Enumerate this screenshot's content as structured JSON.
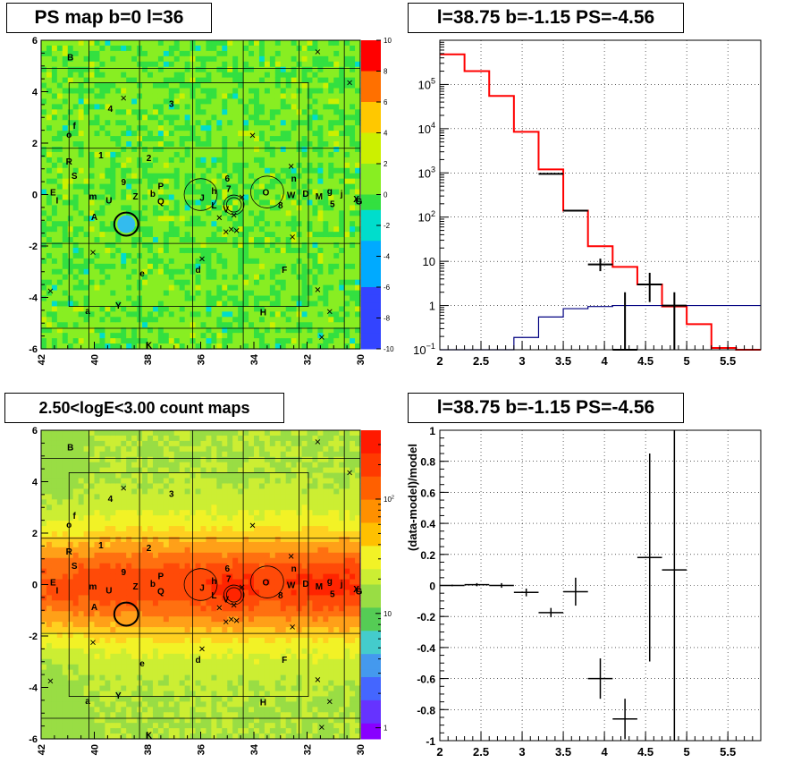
{
  "panels": {
    "tl_title": "PS map b=0 l=36",
    "tr_title": "l=38.75 b=-1.15 PS=-4.56",
    "bl_title": "2.50<logE<3.00 count maps",
    "br_title": "l=38.75 b=-1.15 PS=-4.56",
    "br_ylabel": "(data-model)/model"
  },
  "colors": {
    "model_line": "#ff0000",
    "background_line": "#000080",
    "data": "#000000"
  },
  "chart_data": [
    {
      "type": "heatmap",
      "title": "PS map b=0 l=36",
      "xlim": [
        42,
        30
      ],
      "ylim": [
        -6,
        6
      ],
      "x_ticks": [
        "42",
        "40",
        "38",
        "36",
        "34",
        "32",
        "30"
      ],
      "y_ticks": [
        "6",
        "4",
        "2",
        "0",
        "-2",
        "-4",
        "-6"
      ],
      "colorbar_range": [
        -10,
        10
      ],
      "colorbar_ticks": [
        "10",
        "8",
        "6",
        "4",
        "2",
        "0",
        "-2",
        "-4",
        "-6",
        "-8",
        "-10"
      ],
      "source_labels": [
        {
          "t": "B",
          "l": 40.9,
          "b": 5.35
        },
        {
          "t": "4",
          "l": 39.4,
          "b": 3.35
        },
        {
          "t": "3",
          "l": 37.1,
          "b": 3.55
        },
        {
          "t": "f",
          "l": 40.75,
          "b": 2.7
        },
        {
          "t": "o",
          "l": 40.95,
          "b": 2.35
        },
        {
          "t": "1",
          "l": 39.75,
          "b": 1.55
        },
        {
          "t": "2",
          "l": 37.95,
          "b": 1.45
        },
        {
          "t": "R",
          "l": 40.95,
          "b": 1.3
        },
        {
          "t": "S",
          "l": 40.75,
          "b": 0.75
        },
        {
          "t": "9",
          "l": 38.9,
          "b": 0.5
        },
        {
          "t": "6",
          "l": 35.0,
          "b": 0.65
        },
        {
          "t": "n",
          "l": 32.5,
          "b": 0.65
        },
        {
          "t": "P",
          "l": 37.5,
          "b": 0.35
        },
        {
          "t": "E",
          "l": 41.55,
          "b": 0.1
        },
        {
          "t": "I",
          "l": 41.4,
          "b": -0.2
        },
        {
          "t": "m",
          "l": 40.05,
          "b": -0.05
        },
        {
          "t": "U",
          "l": 39.45,
          "b": -0.2
        },
        {
          "t": "Z",
          "l": 38.45,
          "b": -0.05
        },
        {
          "t": "b",
          "l": 37.8,
          "b": 0.05
        },
        {
          "t": "Q",
          "l": 37.5,
          "b": -0.25
        },
        {
          "t": "J",
          "l": 35.95,
          "b": -0.1
        },
        {
          "t": "h",
          "l": 35.5,
          "b": 0.15
        },
        {
          "t": "L",
          "l": 35.5,
          "b": -0.4
        },
        {
          "t": "7",
          "l": 34.95,
          "b": 0.25
        },
        {
          "t": "V",
          "l": 35.05,
          "b": -0.55
        },
        {
          "t": "O",
          "l": 33.55,
          "b": 0.1
        },
        {
          "t": "8",
          "l": 33.0,
          "b": -0.4
        },
        {
          "t": "W",
          "l": 32.6,
          "b": 0.0
        },
        {
          "t": "D",
          "l": 32.05,
          "b": 0.05
        },
        {
          "t": "M",
          "l": 31.55,
          "b": -0.05
        },
        {
          "t": "g",
          "l": 31.15,
          "b": 0.15
        },
        {
          "t": "j",
          "l": 30.7,
          "b": 0.05
        },
        {
          "t": "5",
          "l": 31.05,
          "b": -0.35
        },
        {
          "t": "X",
          "l": 30.15,
          "b": -0.15
        },
        {
          "t": "G",
          "l": 30.05,
          "b": -0.25
        },
        {
          "t": "A",
          "l": 40.0,
          "b": -0.85
        },
        {
          "t": "e",
          "l": 38.2,
          "b": -3.05
        },
        {
          "t": "d",
          "l": 36.1,
          "b": -2.9
        },
        {
          "t": "F",
          "l": 32.85,
          "b": -2.9
        },
        {
          "t": "Y",
          "l": 39.1,
          "b": -4.3
        },
        {
          "t": "a",
          "l": 40.25,
          "b": -4.5
        },
        {
          "t": "H",
          "l": 33.65,
          "b": -4.55
        },
        {
          "t": "K",
          "l": 37.95,
          "b": -5.85
        }
      ],
      "crosses": [
        [
          31.6,
          5.55
        ],
        [
          30.4,
          4.35
        ],
        [
          38.9,
          3.75
        ],
        [
          34.05,
          2.3
        ],
        [
          32.6,
          1.1
        ],
        [
          32.55,
          -1.65
        ],
        [
          40.05,
          -2.25
        ],
        [
          35.95,
          -2.5
        ],
        [
          41.65,
          -3.75
        ],
        [
          31.6,
          -3.7
        ],
        [
          31.15,
          -4.55
        ],
        [
          31.45,
          -5.55
        ],
        [
          35.05,
          -1.45
        ],
        [
          34.85,
          -1.35
        ],
        [
          34.65,
          -1.4
        ],
        [
          34.75,
          -0.8
        ],
        [
          35.3,
          -0.9
        ],
        [
          34.45,
          -0.1
        ]
      ],
      "circles": [
        {
          "l": 38.8,
          "b": -1.15,
          "r": 0.45,
          "bold": true
        },
        {
          "l": 36.0,
          "b": 0.0,
          "r": 0.62,
          "bold": false
        },
        {
          "l": 33.5,
          "b": 0.1,
          "r": 0.62,
          "bold": false
        },
        {
          "l": 34.75,
          "b": -0.4,
          "r": 0.38,
          "bold": false
        },
        {
          "l": 34.75,
          "b": -0.4,
          "r": 0.28,
          "bold": false
        }
      ]
    },
    {
      "type": "line",
      "title": "l=38.75 b=-1.15 PS=-4.56",
      "xlim": [
        2,
        5.9
      ],
      "ylim": [
        0.1,
        1000000
      ],
      "y_scale": "log",
      "grid": true,
      "x_ticks": [
        2,
        2.5,
        3,
        3.5,
        4,
        4.5,
        5,
        5.5
      ],
      "y_ticks": [
        {
          "v": 0.1,
          "label": "10",
          "sup": "−1"
        },
        {
          "v": 1,
          "label": "1"
        },
        {
          "v": 10,
          "label": "10"
        },
        {
          "v": 100,
          "label": "10",
          "sup": "2"
        },
        {
          "v": 1000,
          "label": "10",
          "sup": "3"
        },
        {
          "v": 10000,
          "label": "10",
          "sup": "4"
        },
        {
          "v": 100000,
          "label": "10",
          "sup": "5"
        }
      ],
      "bin_edges": [
        2.0,
        2.3,
        2.6,
        2.9,
        3.2,
        3.5,
        3.8,
        4.1,
        4.4,
        4.7,
        5.0,
        5.3,
        5.6,
        5.9
      ],
      "series": [
        {
          "values": [
            480000,
            200000,
            55000,
            8500,
            1200,
            140,
            22,
            7.5,
            3.0,
            0.95,
            0.38,
            0.11,
            0.1
          ],
          "color": "#ff0000"
        },
        {
          "values": [
            0.1,
            0.1,
            0.1,
            0.19,
            0.55,
            0.85,
            0.95,
            1.0,
            1.0,
            1.0,
            1.0,
            1.0,
            1.0
          ],
          "color": "#000080"
        }
      ],
      "data_points": [
        {
          "x": 3.35,
          "y": 950,
          "xerr": 0.15,
          "ylo": 950,
          "yhi": 950
        },
        {
          "x": 3.65,
          "y": 140,
          "xerr": 0.15,
          "ylo": 140,
          "yhi": 140
        },
        {
          "x": 3.95,
          "y": 8.5,
          "xerr": 0.15,
          "ylo": 6.0,
          "yhi": 11.5
        },
        {
          "x": 4.25,
          "y": 0.1,
          "xerr": 0.15,
          "ylo": 0.1,
          "yhi": 2.0
        },
        {
          "x": 4.55,
          "y": 3.0,
          "xerr": 0.15,
          "ylo": 1.2,
          "yhi": 5.5
        },
        {
          "x": 4.85,
          "y": 1.0,
          "xerr": 0.15,
          "ylo": 0.1,
          "yhi": 2.0
        }
      ]
    },
    {
      "type": "heatmap",
      "title": "2.50<logE<3.00 count maps",
      "xlim": [
        42,
        30
      ],
      "ylim": [
        -6,
        6
      ],
      "x_ticks": [
        "42",
        "40",
        "38",
        "36",
        "34",
        "32",
        "30"
      ],
      "y_ticks": [
        "6",
        "4",
        "2",
        "0",
        "-2",
        "-4",
        "-6"
      ],
      "colorbar_scale": "log",
      "colorbar_range": [
        0.8,
        400
      ],
      "colorbar_ticks": [
        {
          "v": 1,
          "label": "1"
        },
        {
          "v": 10,
          "label": "10"
        },
        {
          "v": 100,
          "label": "10",
          "sup": "2"
        }
      ]
    },
    {
      "type": "scatter",
      "title": "l=38.75 b=-1.15 PS=-4.56",
      "xlabel": "",
      "ylabel": "(data-model)/model",
      "xlim": [
        2,
        5.9
      ],
      "ylim": [
        -1,
        1
      ],
      "grid": true,
      "x_ticks": [
        2,
        2.5,
        3,
        3.5,
        4,
        4.5,
        5,
        5.5
      ],
      "y_ticks": [
        "1",
        "0.8",
        "0.6",
        "0.4",
        "0.2",
        "0",
        "-0.2",
        "-0.4",
        "-0.6",
        "-0.8",
        "-1"
      ],
      "points": [
        {
          "x": 2.15,
          "y": 0.0,
          "xerr": 0.15,
          "yerr": 0.005
        },
        {
          "x": 2.45,
          "y": 0.005,
          "xerr": 0.15,
          "yerr": 0.01
        },
        {
          "x": 2.75,
          "y": 0.0,
          "xerr": 0.15,
          "yerr": 0.015
        },
        {
          "x": 3.05,
          "y": -0.045,
          "xerr": 0.15,
          "yerr": 0.025
        },
        {
          "x": 3.35,
          "y": -0.175,
          "xerr": 0.15,
          "yerr": 0.03
        },
        {
          "x": 3.65,
          "y": -0.04,
          "xerr": 0.15,
          "yerr": 0.09
        },
        {
          "x": 3.95,
          "y": -0.6,
          "xerr": 0.15,
          "yerr": 0.13
        },
        {
          "x": 4.25,
          "y": -0.86,
          "xerr": 0.15,
          "yerr": 0.13
        },
        {
          "x": 4.55,
          "y": 0.18,
          "xerr": 0.15,
          "yerr": 0.67
        },
        {
          "x": 4.85,
          "y": 0.1,
          "xerr": 0.15,
          "yerr": 1.1
        }
      ]
    }
  ]
}
